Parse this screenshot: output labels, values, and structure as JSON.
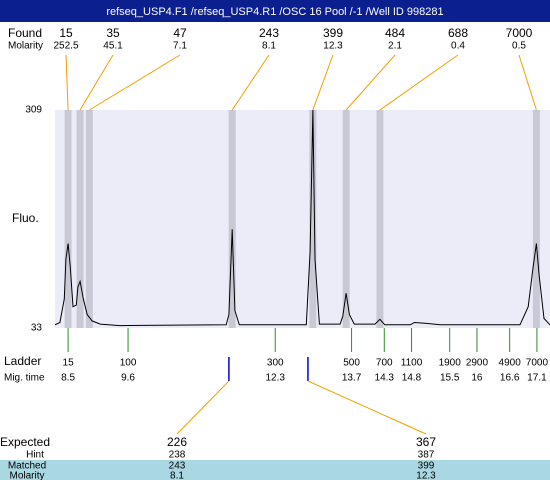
{
  "chart_data": {
    "type": "line",
    "title": "refseq_USP4.F1 /refseq_USP4.R1 /OSC 16 Pool /-1 /Well ID 998281",
    "y_label": "Fluo.",
    "xlim": [
      8.26,
      17.34
    ],
    "ylim": [
      33,
      309
    ],
    "yticks": [
      33,
      309
    ],
    "color": "#000000",
    "x": [
      8.26,
      8.35,
      8.43,
      8.46,
      8.5,
      8.54,
      8.59,
      8.65,
      8.68,
      8.72,
      8.78,
      8.85,
      8.94,
      9.09,
      9.45,
      11.4,
      11.45,
      11.51,
      11.56,
      11.64,
      12.87,
      12.94,
      12.99,
      13.03,
      13.11,
      13.49,
      13.54,
      13.6,
      13.66,
      13.75,
      14.13,
      14.22,
      14.31,
      14.78,
      14.85,
      15.05,
      15.33,
      16.79,
      16.94,
      17.03,
      17.09,
      17.14,
      17.23,
      17.34
    ],
    "values": [
      37,
      40,
      70,
      120,
      140,
      110,
      60,
      62,
      85,
      92,
      70,
      50,
      42,
      38,
      36,
      37,
      50,
      158,
      55,
      37,
      37,
      130,
      309,
      120,
      38,
      38,
      48,
      77,
      50,
      38,
      38,
      44,
      37,
      37,
      40,
      39,
      37,
      37,
      60,
      110,
      140,
      100,
      45,
      37
    ],
    "found": {
      "label": "Found",
      "sub_label": "Molarity",
      "sizes": [
        15,
        35,
        47,
        243,
        399,
        484,
        688,
        7000
      ],
      "molarity": [
        252.5,
        45.1,
        7.1,
        8.1,
        12.3,
        2.1,
        0.4,
        0.5
      ],
      "times": [
        8.5,
        8.72,
        8.89,
        11.51,
        12.99,
        13.6,
        14.22,
        17.09
      ]
    },
    "ladder": {
      "label": "Ladder",
      "sub_label": "Mig. time",
      "sizes": [
        15,
        100,
        300,
        500,
        700,
        1100,
        1900,
        2900,
        4900,
        7000
      ],
      "times": [
        8.5,
        9.6,
        12.3,
        13.7,
        14.3,
        14.8,
        15.5,
        16,
        16.6,
        17.1
      ]
    },
    "expected": {
      "labels": [
        "Expected",
        "Hint",
        "Matched",
        "Molarity"
      ],
      "expected": [
        226,
        367
      ],
      "hint": [
        238,
        387
      ],
      "matched": [
        243,
        399
      ],
      "molarity": [
        8.1,
        12.3
      ],
      "times": [
        11.45,
        12.9
      ]
    }
  }
}
